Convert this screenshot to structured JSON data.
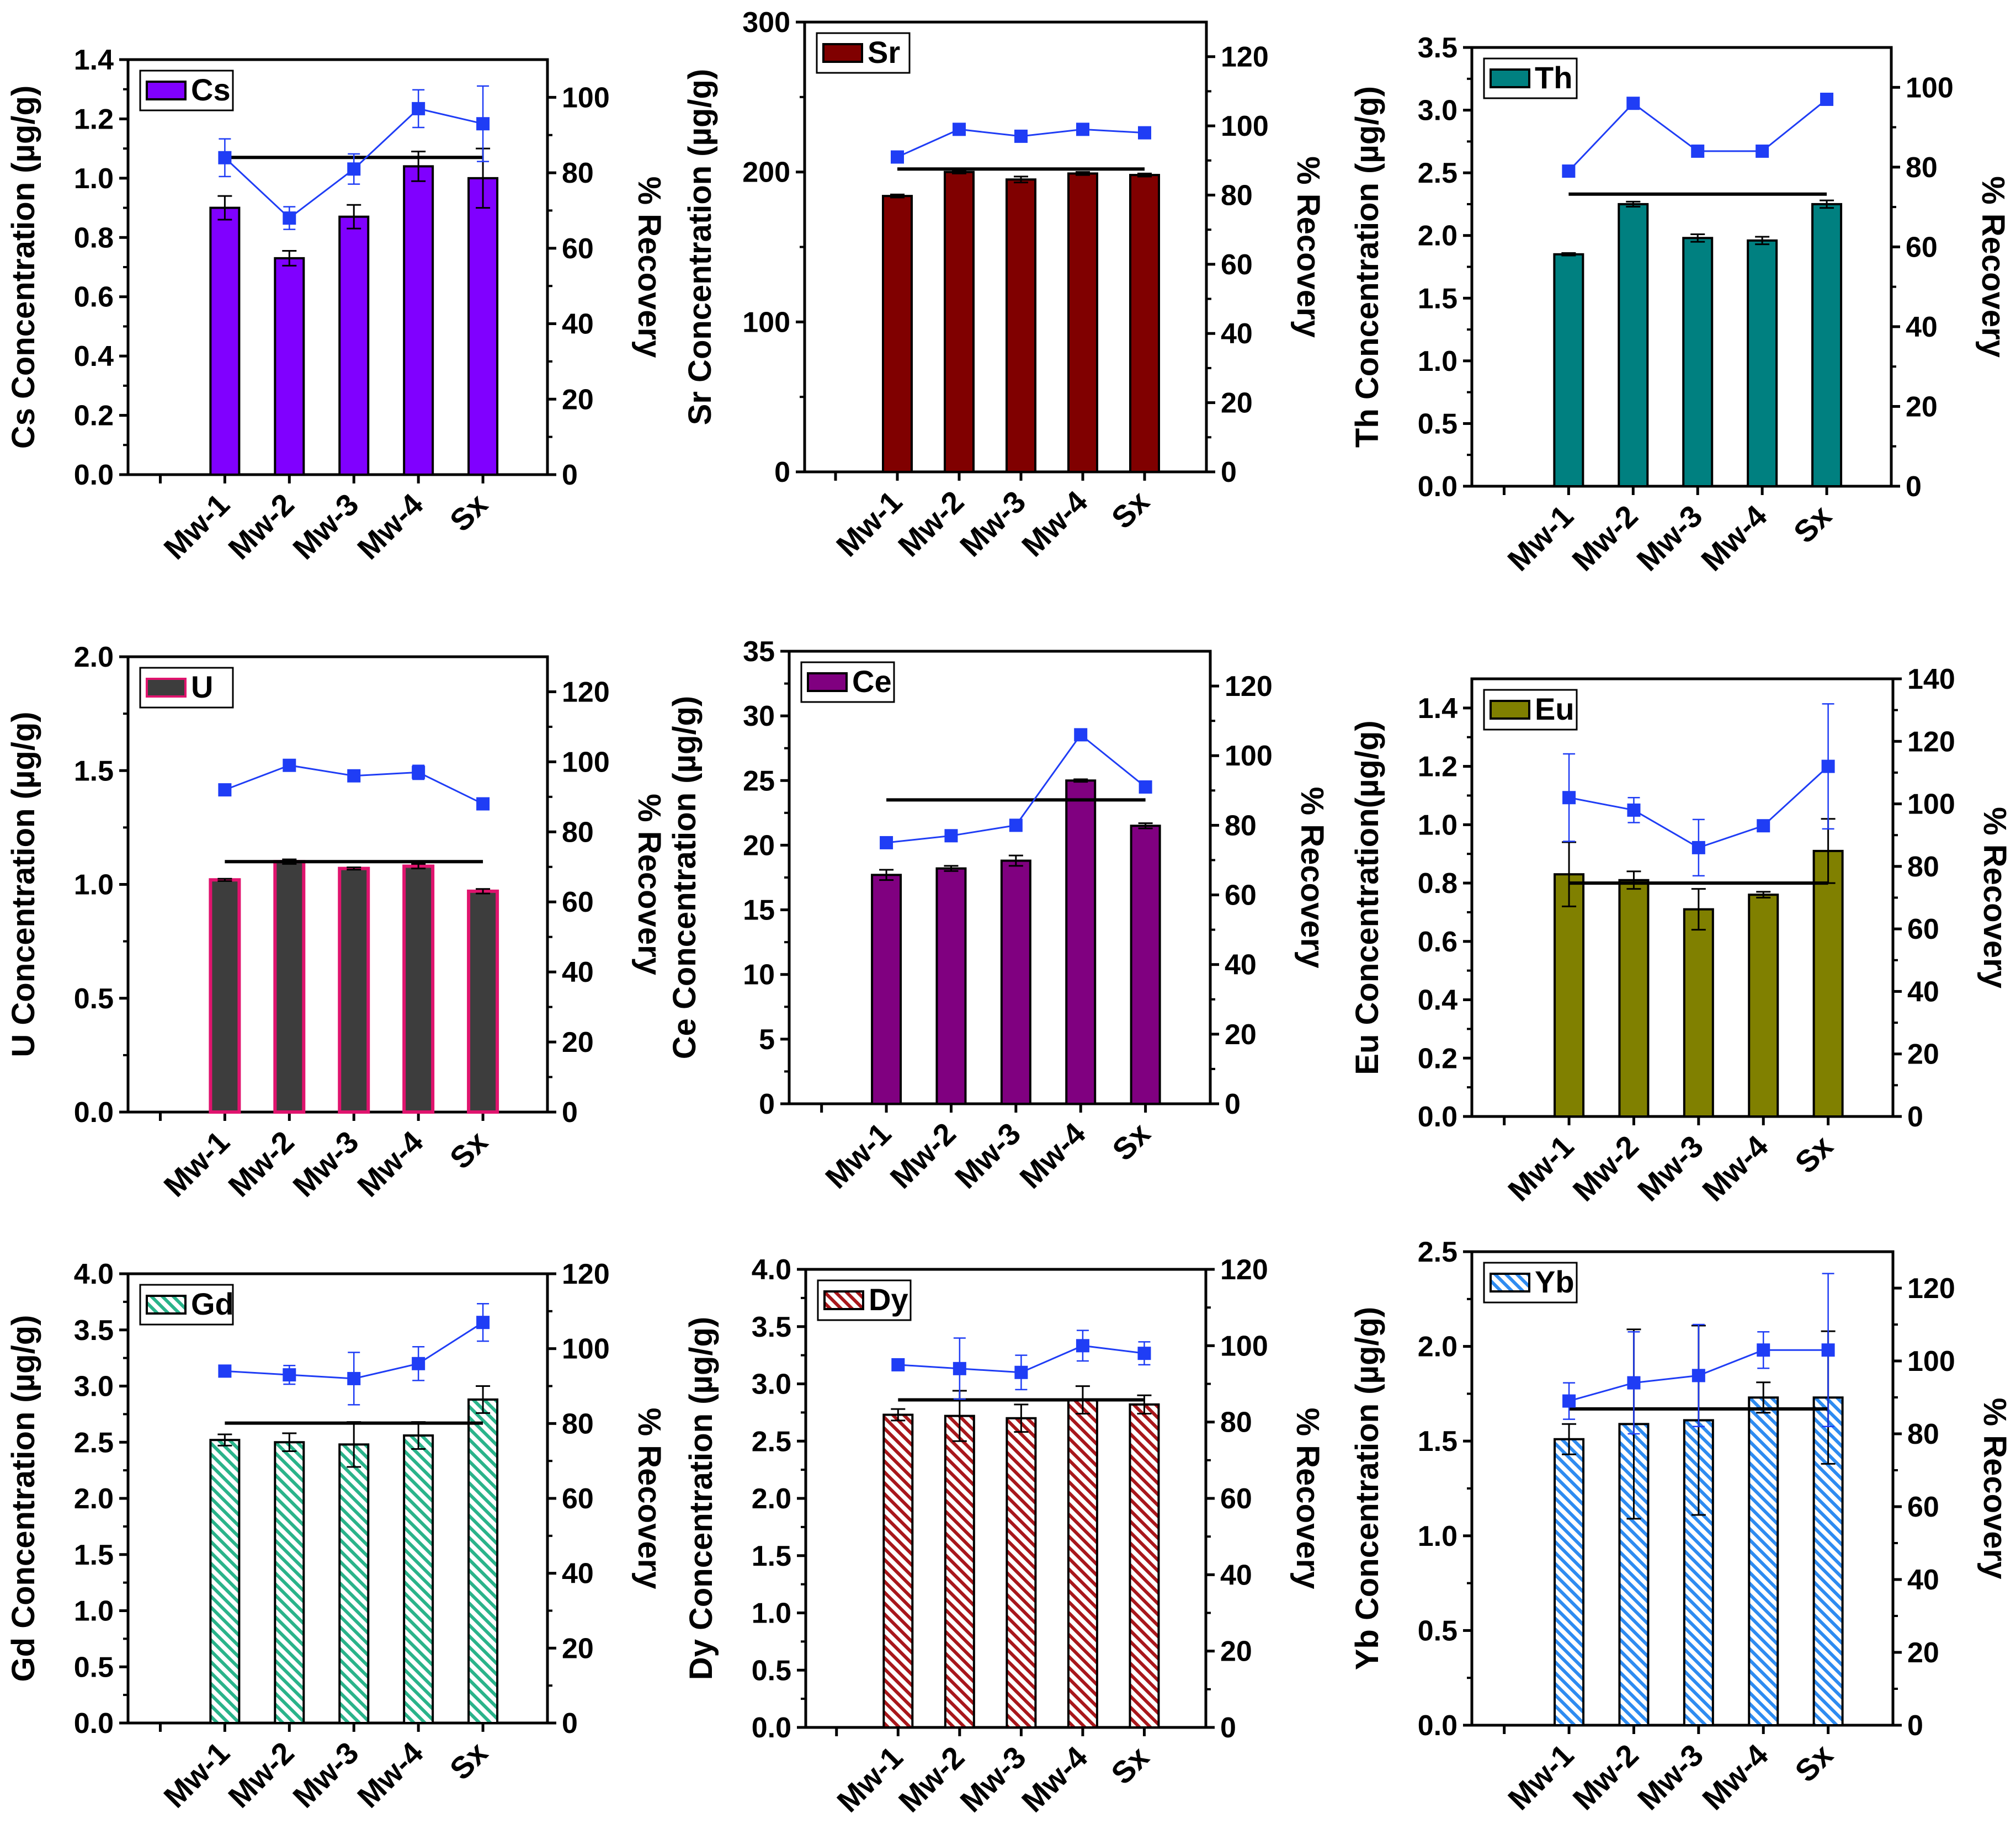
{
  "figure": {
    "recovery_label": "% Recovery",
    "bar_color": "#000000",
    "line_color": "#1f3df5",
    "colors": {
      "Cs": "#8000ff",
      "Sr": "#800000",
      "Th": "#008080",
      "U": "#3d3d3d",
      "U_edge": "#e0146e",
      "Ce": "#800080",
      "Eu": "#808000",
      "Gd": "#2ab38a",
      "Dy": "#a8171b",
      "Yb": "#2e8bf0"
    }
  },
  "chart_data": [
    {
      "type": "bar",
      "element": "Cs",
      "legend": "Cs",
      "ylabel": "Cs Concentration (µg/g)",
      "y2label": "% Recovery",
      "categories": [
        "Mw-1",
        "Mw-2",
        "Mw-3",
        "Mw-4",
        "Sx"
      ],
      "ylim": [
        0,
        1.4
      ],
      "yticks": [
        "0.0",
        "0.2",
        "0.4",
        "0.6",
        "0.8",
        "1.0",
        "1.2",
        "1.4"
      ],
      "y2lim": [
        0,
        110
      ],
      "y2ticks": [
        "0",
        "20",
        "40",
        "60",
        "80",
        "100"
      ],
      "values": [
        0.9,
        0.73,
        0.87,
        1.04,
        1.0
      ],
      "errors": [
        0.04,
        0.025,
        0.04,
        0.05,
        0.1
      ],
      "reference": 1.07,
      "recovery": [
        84,
        68,
        81,
        97,
        93
      ],
      "recovery_errors": [
        5,
        3,
        4,
        5,
        10
      ],
      "pattern": "solid",
      "color_key": "Cs"
    },
    {
      "type": "bar",
      "element": "Sr",
      "legend": "Sr",
      "ylabel": "Sr Concentration (µg/g)",
      "y2label": "% Recovery",
      "categories": [
        "Mw-1",
        "Mw-2",
        "Mw-3",
        "Mw-4",
        "Sx"
      ],
      "ylim": [
        0,
        300
      ],
      "yticks": [
        "0",
        "100",
        "200",
        "300"
      ],
      "y2lim": [
        0,
        130
      ],
      "y2ticks": [
        "0",
        "20",
        "40",
        "60",
        "80",
        "100",
        "120"
      ],
      "values": [
        184,
        200,
        195,
        199,
        198
      ],
      "errors": [
        1,
        1,
        2,
        1,
        1
      ],
      "reference": 202,
      "recovery": [
        91,
        99,
        97,
        99,
        98
      ],
      "recovery_errors": [
        1,
        1,
        1,
        1,
        1
      ],
      "pattern": "solid",
      "color_key": "Sr"
    },
    {
      "type": "bar",
      "element": "Th",
      "legend": "Th",
      "ylabel": "Th Concentration (µg/g)",
      "y2label": "% Recovery",
      "categories": [
        "Mw-1",
        "Mw-2",
        "Mw-3",
        "Mw-4",
        "Sx"
      ],
      "ylim": [
        0,
        3.5
      ],
      "yticks": [
        "0.0",
        "0.5",
        "1.0",
        "1.5",
        "2.0",
        "2.5",
        "3.0",
        "3.5"
      ],
      "y2lim": [
        0,
        110
      ],
      "y2ticks": [
        "0",
        "20",
        "40",
        "60",
        "80",
        "100"
      ],
      "values": [
        1.85,
        2.25,
        1.98,
        1.96,
        2.25
      ],
      "errors": [
        0.01,
        0.02,
        0.03,
        0.03,
        0.03
      ],
      "reference": 2.33,
      "recovery": [
        79,
        96,
        84,
        84,
        97
      ],
      "recovery_errors": [
        0.5,
        0.5,
        0.5,
        0.5,
        0.5
      ],
      "pattern": "solid",
      "color_key": "Th"
    },
    {
      "type": "bar",
      "element": "U",
      "legend": "U",
      "ylabel": "U Concentration (µg/g)",
      "y2label": "% Recovery",
      "categories": [
        "Mw-1",
        "Mw-2",
        "Mw-3",
        "Mw-4",
        "Sx"
      ],
      "ylim": [
        0,
        2.0
      ],
      "yticks": [
        "0.0",
        "0.5",
        "1.0",
        "1.5",
        "2.0"
      ],
      "y2lim": [
        0,
        130
      ],
      "y2ticks": [
        "0",
        "20",
        "40",
        "60",
        "80",
        "100",
        "120"
      ],
      "values": [
        1.02,
        1.1,
        1.07,
        1.08,
        0.97
      ],
      "errors": [
        0.005,
        0.01,
        0.005,
        0.01,
        0.01
      ],
      "reference": 1.1,
      "recovery": [
        92,
        99,
        96,
        97,
        88
      ],
      "recovery_errors": [
        0.5,
        0.5,
        0.5,
        2,
        0.5
      ],
      "pattern": "solid",
      "color_key": "U"
    },
    {
      "type": "bar",
      "element": "Ce",
      "legend": "Ce",
      "ylabel": "Ce Concentration (µg/g)",
      "y2label": "% Recovery",
      "categories": [
        "Mw-1",
        "Mw-2",
        "Mw-3",
        "Mw-4",
        "Sx"
      ],
      "ylim": [
        0,
        35
      ],
      "yticks": [
        "0",
        "5",
        "10",
        "15",
        "20",
        "25",
        "30",
        "35"
      ],
      "y2lim": [
        0,
        130
      ],
      "y2ticks": [
        "0",
        "20",
        "40",
        "60",
        "80",
        "100",
        "120"
      ],
      "values": [
        17.7,
        18.2,
        18.8,
        25.0,
        21.5
      ],
      "errors": [
        0.4,
        0.2,
        0.4,
        0.1,
        0.2
      ],
      "reference": 23.5,
      "recovery": [
        75,
        77,
        80,
        106,
        91
      ],
      "recovery_errors": [
        0.5,
        0.5,
        0.5,
        0.5,
        0.5
      ],
      "pattern": "solid",
      "color_key": "Ce"
    },
    {
      "type": "bar",
      "element": "Eu",
      "legend": "Eu",
      "ylabel": "Eu Concentration(µg/g)",
      "y2label": "% Recovery",
      "categories": [
        "Mw-1",
        "Mw-2",
        "Mw-3",
        "Mw-4",
        "Sx"
      ],
      "ylim": [
        0,
        1.5
      ],
      "yticks": [
        "0.0",
        "0.2",
        "0.4",
        "0.6",
        "0.8",
        "1.0",
        "1.2",
        "1.4"
      ],
      "y2lim": [
        0,
        140
      ],
      "y2ticks": [
        "0",
        "20",
        "40",
        "60",
        "80",
        "100",
        "120",
        "140"
      ],
      "values": [
        0.83,
        0.81,
        0.71,
        0.76,
        0.91
      ],
      "errors": [
        0.11,
        0.03,
        0.07,
        0.01,
        0.11
      ],
      "reference": 0.8,
      "recovery": [
        102,
        98,
        86,
        93,
        112
      ],
      "recovery_errors": [
        14,
        4,
        9,
        1,
        20
      ],
      "pattern": "solid",
      "color_key": "Eu"
    },
    {
      "type": "bar",
      "element": "Gd",
      "legend": "Gd",
      "ylabel": "Gd Concentration (µg/g)",
      "y2label": "% Recovery",
      "categories": [
        "Mw-1",
        "Mw-2",
        "Mw-3",
        "Mw-4",
        "Sx"
      ],
      "ylim": [
        0,
        4.0
      ],
      "yticks": [
        "0.0",
        "0.5",
        "1.0",
        "1.5",
        "2.0",
        "2.5",
        "3.0",
        "3.5",
        "4.0"
      ],
      "y2lim": [
        0,
        120
      ],
      "y2ticks": [
        "0",
        "20",
        "40",
        "60",
        "80",
        "100",
        "120"
      ],
      "values": [
        2.52,
        2.5,
        2.48,
        2.56,
        2.88
      ],
      "errors": [
        0.05,
        0.08,
        0.2,
        0.12,
        0.12
      ],
      "reference": 2.67,
      "recovery": [
        94,
        93,
        92,
        96,
        107
      ],
      "recovery_errors": [
        1.5,
        2.5,
        7,
        4.5,
        5
      ],
      "pattern": "hatch",
      "color_key": "Gd"
    },
    {
      "type": "bar",
      "element": "Dy",
      "legend": "Dy",
      "ylabel": "Dy Concentration (µg/g)",
      "y2label": "% Recovery",
      "categories": [
        "Mw-1",
        "Mw-2",
        "Mw-3",
        "Mw-4",
        "Sx"
      ],
      "ylim": [
        0,
        4.0
      ],
      "yticks": [
        "0.0",
        "0.5",
        "1.0",
        "1.5",
        "2.0",
        "2.5",
        "3.0",
        "3.5",
        "4.0"
      ],
      "y2lim": [
        0,
        120
      ],
      "y2ticks": [
        "0",
        "20",
        "40",
        "60",
        "80",
        "100",
        "120"
      ],
      "values": [
        2.73,
        2.72,
        2.7,
        2.86,
        2.82
      ],
      "errors": [
        0.05,
        0.22,
        0.12,
        0.12,
        0.08
      ],
      "reference": 2.86,
      "recovery": [
        95,
        94,
        93,
        100,
        98
      ],
      "recovery_errors": [
        1.5,
        8,
        4.5,
        4,
        3
      ],
      "pattern": "hatch",
      "color_key": "Dy"
    },
    {
      "type": "bar",
      "element": "Yb",
      "legend": "Yb",
      "ylabel": "Yb Concentration (µg/g)",
      "y2label": "% Recovery",
      "categories": [
        "Mw-1",
        "Mw-2",
        "Mw-3",
        "Mw-4",
        "Sx"
      ],
      "ylim": [
        0,
        2.5
      ],
      "yticks": [
        "0.0",
        "0.5",
        "1.0",
        "1.5",
        "2.0",
        "2.5"
      ],
      "y2lim": [
        0,
        130
      ],
      "y2ticks": [
        "0",
        "20",
        "40",
        "60",
        "80",
        "100",
        "120"
      ],
      "values": [
        1.51,
        1.59,
        1.61,
        1.73,
        1.73
      ],
      "errors": [
        0.08,
        0.5,
        0.5,
        0.08,
        0.35
      ],
      "reference": 1.67,
      "recovery": [
        89,
        94,
        96,
        103,
        103
      ],
      "recovery_errors": [
        5,
        14,
        14,
        5,
        21
      ],
      "pattern": "hatch",
      "color_key": "Yb"
    }
  ]
}
